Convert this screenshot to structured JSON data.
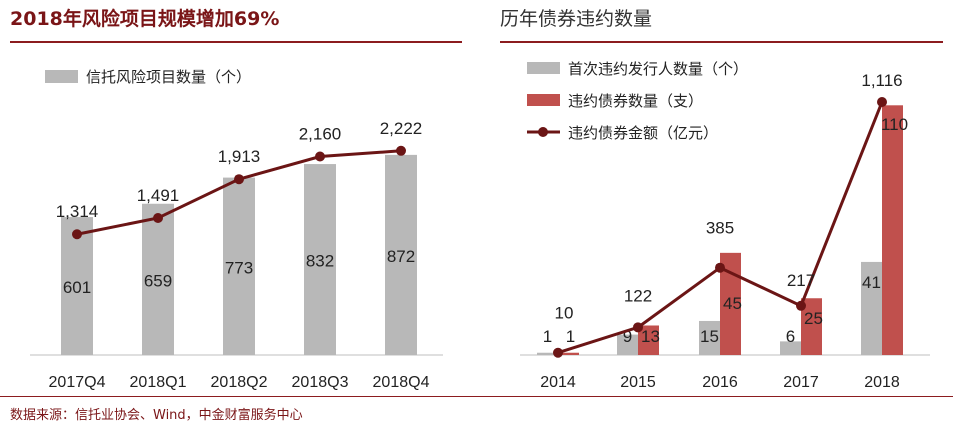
{
  "left": {
    "title": "2018年风险项目规模增加69%",
    "legend": "信托风险项目数量（个）",
    "chart_data": {
      "type": "bar",
      "categories": [
        "2017Q4",
        "2018Q1",
        "2018Q2",
        "2018Q3",
        "2018Q4"
      ],
      "series": [
        {
          "name": "信托风险项目数量（个）",
          "type": "bar",
          "values": [
            601,
            659,
            773,
            832,
            872
          ],
          "color": "#b8b8b8"
        },
        {
          "name": "",
          "type": "line",
          "values": [
            1314,
            1491,
            1913,
            2160,
            2222
          ],
          "color": "#6b1515"
        }
      ],
      "labels": {
        "bars": [
          "601",
          "659",
          "773",
          "832",
          "872"
        ],
        "line": [
          "1,314",
          "1,491",
          "1,913",
          "2,160",
          "2,222"
        ]
      }
    }
  },
  "right": {
    "title": "历年债券违约数量",
    "legend": [
      "首次违约发行人数量（个）",
      "违约债券数量（支）",
      "违约债券金额（亿元）"
    ],
    "chart_data": {
      "type": "bar",
      "categories": [
        "2014",
        "2015",
        "2016",
        "2017",
        "2018"
      ],
      "series": [
        {
          "name": "首次违约发行人数量（个）",
          "type": "bar",
          "values": [
            1,
            9,
            15,
            6,
            41
          ],
          "color": "#b8b8b8"
        },
        {
          "name": "违约债券数量（支）",
          "type": "bar",
          "values": [
            1,
            13,
            45,
            25,
            110
          ],
          "color": "#c0504d"
        },
        {
          "name": "违约债券金额（亿元）",
          "type": "line",
          "values": [
            10,
            122,
            385,
            217,
            1116
          ],
          "color": "#6b1515"
        }
      ],
      "labels": {
        "gray": [
          "1",
          "9",
          "15",
          "6",
          "41"
        ],
        "red": [
          "1",
          "13",
          "45",
          "25",
          "110"
        ],
        "line": [
          "10",
          "122",
          "385",
          "217",
          "1,116"
        ]
      }
    }
  },
  "source": "数据来源：信托业协会、Wind，中金财富服务中心"
}
